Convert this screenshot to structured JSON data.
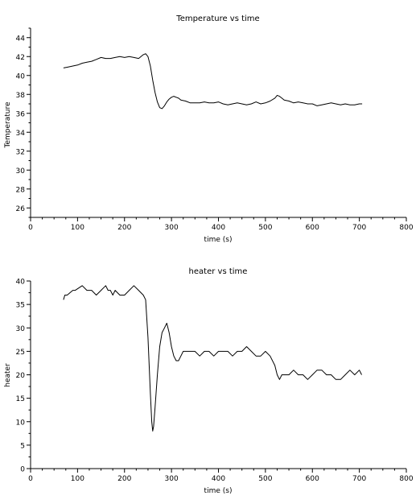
{
  "chart_data": [
    {
      "type": "line",
      "title": "Temperature vs time",
      "xlabel": "time (s)",
      "ylabel": "Temperature",
      "xlim": [
        0,
        800
      ],
      "ylim": [
        25,
        45
      ],
      "xticks": [
        "0",
        "100",
        "200",
        "300",
        "400",
        "500",
        "600",
        "700",
        "800"
      ],
      "yticks": [
        "26",
        "28",
        "30",
        "32",
        "34",
        "36",
        "38",
        "40",
        "42",
        "44"
      ],
      "grid": false,
      "series": [
        {
          "color": "#000000",
          "x": [
            70,
            80,
            90,
            100,
            110,
            120,
            130,
            140,
            150,
            160,
            170,
            180,
            190,
            200,
            210,
            220,
            230,
            240,
            245,
            250,
            255,
            260,
            265,
            270,
            275,
            280,
            285,
            290,
            295,
            300,
            305,
            310,
            315,
            320,
            330,
            340,
            350,
            360,
            370,
            380,
            390,
            400,
            410,
            420,
            430,
            440,
            450,
            460,
            470,
            480,
            490,
            500,
            510,
            520,
            525,
            530,
            535,
            540,
            550,
            560,
            570,
            580,
            590,
            600,
            610,
            620,
            630,
            640,
            650,
            660,
            670,
            680,
            690,
            700,
            706
          ],
          "y": [
            40.8,
            40.9,
            41.0,
            41.1,
            41.3,
            41.4,
            41.5,
            41.7,
            41.9,
            41.8,
            41.8,
            41.9,
            42.0,
            41.9,
            42.0,
            41.9,
            41.8,
            42.2,
            42.3,
            42.0,
            41.0,
            39.5,
            38.2,
            37.2,
            36.6,
            36.5,
            36.8,
            37.2,
            37.5,
            37.7,
            37.8,
            37.7,
            37.6,
            37.4,
            37.3,
            37.1,
            37.1,
            37.1,
            37.2,
            37.1,
            37.1,
            37.2,
            37.0,
            36.9,
            37.0,
            37.1,
            37.0,
            36.9,
            37.0,
            37.2,
            37.0,
            37.1,
            37.3,
            37.6,
            37.9,
            37.8,
            37.6,
            37.4,
            37.3,
            37.1,
            37.2,
            37.1,
            37.0,
            37.0,
            36.8,
            36.9,
            37.0,
            37.1,
            37.0,
            36.9,
            37.0,
            36.9,
            36.9,
            37.0,
            37.0
          ]
        }
      ]
    },
    {
      "type": "line",
      "title": "heater vs time",
      "xlabel": "time (s)",
      "ylabel": "heater",
      "xlim": [
        0,
        800
      ],
      "ylim": [
        0,
        40
      ],
      "xticks": [
        "0",
        "100",
        "200",
        "300",
        "400",
        "500",
        "600",
        "700",
        "800"
      ],
      "yticks": [
        "0",
        "5",
        "10",
        "15",
        "20",
        "25",
        "30",
        "35",
        "40"
      ],
      "grid": false,
      "series": [
        {
          "color": "#000000",
          "x": [
            70,
            73,
            78,
            90,
            95,
            110,
            120,
            130,
            140,
            150,
            160,
            165,
            170,
            175,
            180,
            190,
            200,
            210,
            220,
            230,
            240,
            245,
            250,
            255,
            258,
            260,
            262,
            265,
            270,
            275,
            280,
            285,
            290,
            295,
            300,
            305,
            310,
            315,
            320,
            325,
            330,
            340,
            350,
            360,
            370,
            380,
            390,
            400,
            410,
            420,
            430,
            440,
            450,
            460,
            470,
            480,
            490,
            500,
            510,
            520,
            525,
            530,
            535,
            540,
            550,
            560,
            570,
            580,
            590,
            600,
            610,
            620,
            630,
            640,
            650,
            660,
            670,
            680,
            690,
            700,
            705
          ],
          "y": [
            36,
            37,
            37,
            38,
            38,
            39,
            38,
            38,
            37,
            38,
            39,
            38,
            38,
            37,
            38,
            37,
            37,
            38,
            39,
            38,
            37,
            36,
            28,
            16,
            10,
            8,
            9,
            13,
            20,
            26,
            29,
            30,
            31,
            29,
            26,
            24,
            23,
            23,
            24,
            25,
            25,
            25,
            25,
            24,
            25,
            25,
            24,
            25,
            25,
            25,
            24,
            25,
            25,
            26,
            25,
            24,
            24,
            25,
            24,
            22,
            20,
            19,
            20,
            20,
            20,
            21,
            20,
            20,
            19,
            20,
            21,
            21,
            20,
            20,
            19,
            19,
            20,
            21,
            20,
            21,
            20
          ]
        }
      ]
    }
  ]
}
